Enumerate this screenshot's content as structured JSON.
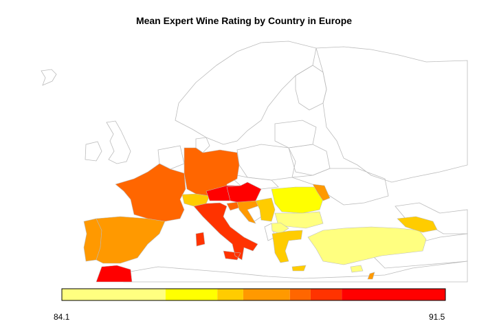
{
  "title": "Mean Expert Wine Rating by Country in Europe",
  "legend": {
    "min_label": "84.1",
    "max_label": "91.5",
    "bins": [
      {
        "from": 84.1,
        "to": 86.1,
        "color": "#FFFF80"
      },
      {
        "from": 86.1,
        "to": 87.1,
        "color": "#FFFF00"
      },
      {
        "from": 87.1,
        "to": 87.6,
        "color": "#FFCC00"
      },
      {
        "from": 87.6,
        "to": 88.5,
        "color": "#FF9900"
      },
      {
        "from": 88.5,
        "to": 88.9,
        "color": "#FF6600"
      },
      {
        "from": 88.9,
        "to": 89.5,
        "color": "#FF3300"
      },
      {
        "from": 89.5,
        "to": 91.5,
        "color": "#FF0000"
      }
    ]
  },
  "countries": [
    {
      "name": "Portugal",
      "color": "#FF9900"
    },
    {
      "name": "Spain",
      "color": "#FF9900"
    },
    {
      "name": "France",
      "color": "#FF6600"
    },
    {
      "name": "Germany",
      "color": "#FF6600"
    },
    {
      "name": "Switzerland",
      "color": "#FFCC00"
    },
    {
      "name": "Austria",
      "color": "#FF0000"
    },
    {
      "name": "Hungary",
      "color": "#FF0000"
    },
    {
      "name": "Italy",
      "color": "#FF3300"
    },
    {
      "name": "Slovenia",
      "color": "#FF6600"
    },
    {
      "name": "Croatia",
      "color": "#FF9900"
    },
    {
      "name": "Serbia",
      "color": "#FFCC00"
    },
    {
      "name": "Romania",
      "color": "#FFFF00"
    },
    {
      "name": "Moldova",
      "color": "#FF9900"
    },
    {
      "name": "Bulgaria",
      "color": "#FFFF80"
    },
    {
      "name": "Macedonia",
      "color": "#FFFF80"
    },
    {
      "name": "Greece",
      "color": "#FFCC00"
    },
    {
      "name": "Turkey",
      "color": "#FFFF80"
    },
    {
      "name": "Cyprus",
      "color": "#FFFF80"
    },
    {
      "name": "Lebanon",
      "color": "#FF9900"
    },
    {
      "name": "Georgia",
      "color": "#FFCC00"
    },
    {
      "name": "Morocco",
      "color": "#FF0000"
    }
  ],
  "outline_color": "#BBBBBB"
}
